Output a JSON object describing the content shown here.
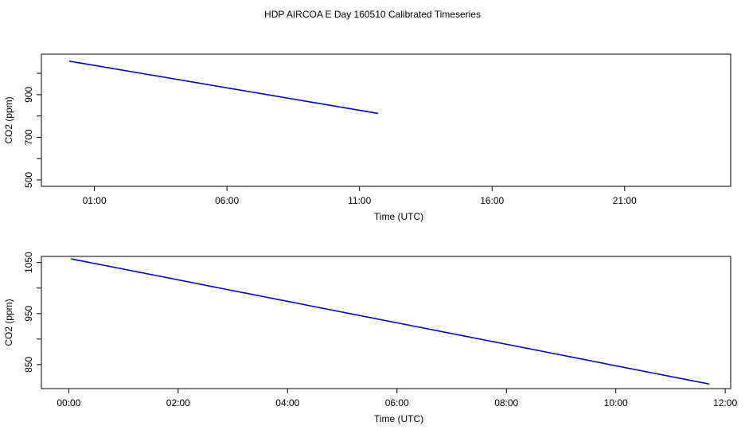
{
  "title": "HDP AIRCOA E  Day 160510  Calibrated Timeseries",
  "chart_data": [
    {
      "type": "line",
      "title": "",
      "xlabel": "Time (UTC)",
      "ylabel": "CO2 (ppm)",
      "x_unit": "hours",
      "xlim": [
        -1.0,
        25.0
      ],
      "ylim": [
        470,
        1090
      ],
      "xticks": [
        {
          "value": 1,
          "label": "01:00"
        },
        {
          "value": 6,
          "label": "06:00"
        },
        {
          "value": 11,
          "label": "11:00"
        },
        {
          "value": 16,
          "label": "16:00"
        },
        {
          "value": 21,
          "label": "21:00"
        }
      ],
      "yticks": [
        {
          "value": 500,
          "label": "500"
        },
        {
          "value": 600,
          "label": ""
        },
        {
          "value": 700,
          "label": "700"
        },
        {
          "value": 800,
          "label": ""
        },
        {
          "value": 900,
          "label": "900"
        },
        {
          "value": 1000,
          "label": ""
        }
      ],
      "grid": false,
      "series": [
        {
          "color": "#0000cc",
          "x": [
            0.05,
            11.7
          ],
          "y": [
            1057,
            812
          ]
        }
      ]
    },
    {
      "type": "line",
      "title": "",
      "xlabel": "Time (UTC)",
      "ylabel": "CO2 (ppm)",
      "x_unit": "hours",
      "xlim": [
        -0.5,
        12.1
      ],
      "ylim": [
        803,
        1062
      ],
      "xticks": [
        {
          "value": 0,
          "label": "00:00"
        },
        {
          "value": 2,
          "label": "02:00"
        },
        {
          "value": 4,
          "label": "04:00"
        },
        {
          "value": 6,
          "label": "06:00"
        },
        {
          "value": 8,
          "label": "08:00"
        },
        {
          "value": 10,
          "label": "10:00"
        },
        {
          "value": 12,
          "label": "12:00"
        }
      ],
      "yticks": [
        {
          "value": 850,
          "label": "850"
        },
        {
          "value": 900,
          "label": ""
        },
        {
          "value": 950,
          "label": "950"
        },
        {
          "value": 1000,
          "label": ""
        },
        {
          "value": 1050,
          "label": "1050"
        }
      ],
      "grid": false,
      "series": [
        {
          "color": "#0000cc",
          "x": [
            0.05,
            11.7
          ],
          "y": [
            1057,
            812
          ]
        }
      ],
      "endpoint_color": "#00aa00"
    }
  ]
}
